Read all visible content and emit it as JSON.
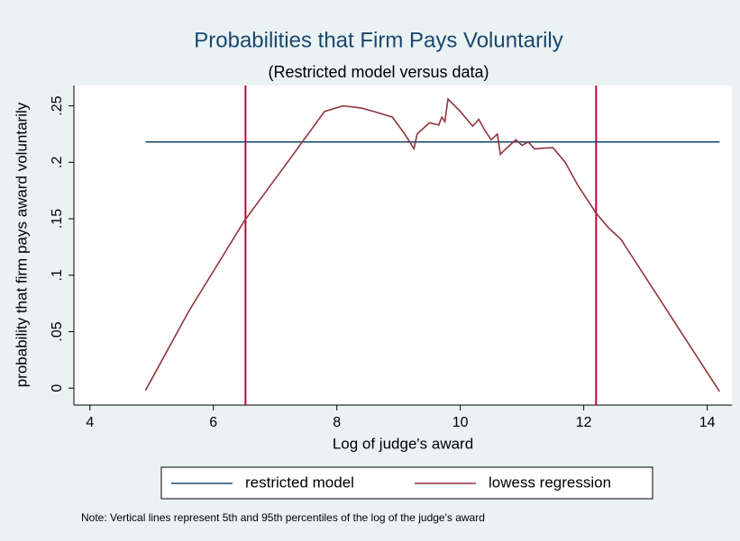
{
  "chart_data": {
    "type": "line",
    "title": "Probabilities that Firm Pays Voluntarily",
    "subtitle": "(Restricted model versus data)",
    "x_label": "Log of judge's award",
    "y_label": "probability that firm pays award voluntarily",
    "note": "Note: Vertical lines represent 5th and 95th percentiles of the log of the judge's award",
    "xlim": [
      3.74,
      14.4
    ],
    "ylim": [
      -0.015,
      0.268
    ],
    "xticks": [
      4,
      6,
      8,
      10,
      12,
      14
    ],
    "yticks": [
      0,
      {
        "value": 0.05,
        "label": ".05"
      },
      {
        "value": 0.1,
        "label": ".1"
      },
      {
        "value": 0.15,
        "label": ".15"
      },
      {
        "value": 0.2,
        "label": ".2"
      },
      {
        "value": 0.25,
        "label": ".25"
      }
    ],
    "vlines": [
      6.52,
      12.2
    ],
    "vline_color": "#c10534",
    "series": [
      {
        "name": "restricted model",
        "color": "#1a476f",
        "x": [
          4.9,
          14.2
        ],
        "values": [
          0.218,
          0.218
        ]
      },
      {
        "name": "lowess regression",
        "color": "#90353b",
        "x": [
          4.9,
          5.6,
          6.5,
          7.2,
          7.8,
          8.1,
          8.4,
          8.6,
          8.9,
          9.1,
          9.25,
          9.3,
          9.5,
          9.65,
          9.7,
          9.75,
          9.8,
          10.0,
          10.2,
          10.3,
          10.4,
          10.5,
          10.6,
          10.65,
          10.7,
          10.8,
          10.9,
          11.0,
          11.1,
          11.2,
          11.5,
          11.7,
          11.9,
          12.2,
          12.4,
          12.6,
          14.2
        ],
        "values": [
          -0.002,
          0.068,
          0.148,
          0.2,
          0.245,
          0.25,
          0.248,
          0.245,
          0.24,
          0.225,
          0.212,
          0.225,
          0.235,
          0.233,
          0.24,
          0.236,
          0.256,
          0.245,
          0.232,
          0.238,
          0.228,
          0.22,
          0.225,
          0.207,
          0.21,
          0.215,
          0.22,
          0.215,
          0.218,
          0.212,
          0.213,
          0.2,
          0.18,
          0.155,
          0.142,
          0.132,
          -0.003
        ]
      }
    ],
    "legend": "bottom"
  }
}
